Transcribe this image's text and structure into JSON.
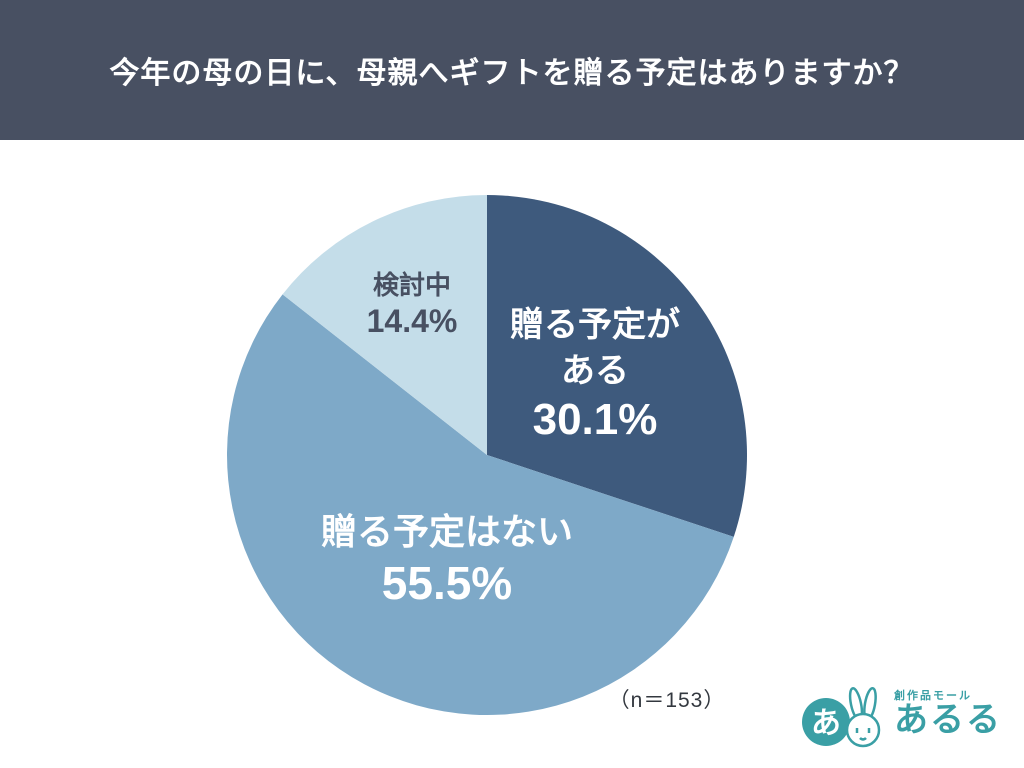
{
  "header": {
    "title": "今年の母の日に、母親へギフトを贈る予定はありますか？",
    "bg_color": "#485062",
    "text_color": "#ffffff"
  },
  "chart_data": {
    "type": "pie",
    "title": "今年の母の日に、母親へギフトを贈る予定はありますか？",
    "sample_size_note": "（n＝153）",
    "start_angle_deg": 0,
    "direction": "clockwise",
    "legend_position": "inside",
    "slices": [
      {
        "label": "贈る予定がある",
        "value": 30.1,
        "color": "#3e5a7d",
        "label_color": "#ffffff"
      },
      {
        "label": "贈る予定はない",
        "value": 55.5,
        "color": "#7ea9c8",
        "label_color": "#ffffff"
      },
      {
        "label": "検討中",
        "value": 14.4,
        "color": "#c4dde9",
        "label_color": "#485062"
      }
    ]
  },
  "labels": {
    "slice1_line1": "贈る予定が",
    "slice1_line2": "ある",
    "slice1_pct": "30.1%",
    "slice2_line1": "贈る予定はない",
    "slice2_pct": "55.5%",
    "slice3_line1": "検討中",
    "slice3_pct": "14.4%",
    "n_note": "（n＝153）"
  },
  "logo": {
    "mark": "あ",
    "brand_small": "創作品モール",
    "brand_name": "あるる",
    "color": "#3a9fa5"
  }
}
